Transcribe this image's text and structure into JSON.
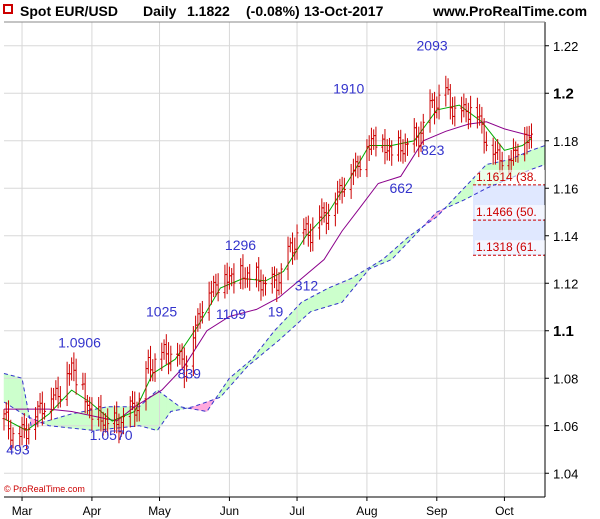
{
  "header": {
    "title": "Spot EUR/USD",
    "timeframe": "Daily",
    "last_price": "1.1822",
    "change": "(-0.08%)",
    "date": "13-Oct-2017",
    "site": "www.ProRealTime.com"
  },
  "footer": {
    "copyright": "© ProRealTime.com"
  },
  "colors": {
    "up": "#cc0000",
    "down": "#cc0000",
    "tenkan": "#00aa00",
    "kijun": "#8b008b",
    "cloud_bull": "#ccffcc",
    "cloud_bear": "#ffaadd",
    "span_line": "#3333cc",
    "fib": "#cc0000",
    "fib_zone": "#e0e8ff",
    "annotation": "#3333cc",
    "grid": "#d8d8d8"
  },
  "chart_data": {
    "type": "line",
    "title": "Spot EUR/USD Daily",
    "ylim": [
      1.03,
      1.23
    ],
    "grid": true,
    "x_labels": [
      {
        "label": "Mar",
        "day": 8
      },
      {
        "label": "Apr",
        "day": 39
      },
      {
        "label": "May",
        "day": 69
      },
      {
        "label": "Jun",
        "day": 100
      },
      {
        "label": "Jul",
        "day": 130
      },
      {
        "label": "Aug",
        "day": 161
      },
      {
        "label": "Sep",
        "day": 192
      },
      {
        "label": "Oct",
        "day": 222
      }
    ],
    "x_range": [
      0,
      240
    ],
    "y_ticks": [
      {
        "value": 1.04,
        "label": "1.04",
        "major": false
      },
      {
        "value": 1.06,
        "label": "1.06",
        "major": false
      },
      {
        "value": 1.08,
        "label": "1.08",
        "major": false
      },
      {
        "value": 1.1,
        "label": "1.1",
        "major": true
      },
      {
        "value": 1.12,
        "label": "1.12",
        "major": false
      },
      {
        "value": 1.14,
        "label": "1.14",
        "major": false
      },
      {
        "value": 1.16,
        "label": "1.16",
        "major": false
      },
      {
        "value": 1.18,
        "label": "1.18",
        "major": false
      },
      {
        "value": 1.2,
        "label": "1.2",
        "major": true
      },
      {
        "value": 1.22,
        "label": "1.22",
        "major": false
      }
    ],
    "price_path": [
      [
        0,
        1.063
      ],
      [
        6,
        1.054
      ],
      [
        12,
        1.062
      ],
      [
        18,
        1.07
      ],
      [
        24,
        1.074
      ],
      [
        30,
        1.085
      ],
      [
        34,
        1.078
      ],
      [
        38,
        1.066
      ],
      [
        45,
        1.062
      ],
      [
        50,
        1.06
      ],
      [
        56,
        1.066
      ],
      [
        60,
        1.07
      ],
      [
        64,
        1.085
      ],
      [
        70,
        1.09
      ],
      [
        76,
        1.092
      ],
      [
        80,
        1.085
      ],
      [
        84,
        1.098
      ],
      [
        88,
        1.112
      ],
      [
        94,
        1.12
      ],
      [
        100,
        1.123
      ],
      [
        106,
        1.124
      ],
      [
        112,
        1.122
      ],
      [
        118,
        1.118
      ],
      [
        122,
        1.122
      ],
      [
        126,
        1.132
      ],
      [
        130,
        1.14
      ],
      [
        136,
        1.142
      ],
      [
        140,
        1.148
      ],
      [
        146,
        1.152
      ],
      [
        150,
        1.162
      ],
      [
        155,
        1.168
      ],
      [
        160,
        1.175
      ],
      [
        164,
        1.182
      ],
      [
        168,
        1.178
      ],
      [
        172,
        1.176
      ],
      [
        178,
        1.178
      ],
      [
        184,
        1.182
      ],
      [
        190,
        1.195
      ],
      [
        196,
        1.2
      ],
      [
        200,
        1.193
      ],
      [
        204,
        1.192
      ],
      [
        208,
        1.196
      ],
      [
        212,
        1.186
      ],
      [
        216,
        1.176
      ],
      [
        220,
        1.174
      ],
      [
        224,
        1.172
      ],
      [
        228,
        1.178
      ],
      [
        232,
        1.182
      ],
      [
        234,
        1.182
      ]
    ],
    "tenkan": [
      [
        0,
        1.063
      ],
      [
        10,
        1.058
      ],
      [
        20,
        1.065
      ],
      [
        30,
        1.075
      ],
      [
        38,
        1.07
      ],
      [
        48,
        1.062
      ],
      [
        58,
        1.066
      ],
      [
        66,
        1.082
      ],
      [
        76,
        1.088
      ],
      [
        86,
        1.102
      ],
      [
        96,
        1.118
      ],
      [
        106,
        1.122
      ],
      [
        116,
        1.121
      ],
      [
        124,
        1.125
      ],
      [
        134,
        1.14
      ],
      [
        144,
        1.15
      ],
      [
        154,
        1.165
      ],
      [
        162,
        1.178
      ],
      [
        172,
        1.178
      ],
      [
        182,
        1.18
      ],
      [
        192,
        1.193
      ],
      [
        202,
        1.195
      ],
      [
        212,
        1.188
      ],
      [
        222,
        1.176
      ],
      [
        230,
        1.178
      ],
      [
        234,
        1.181
      ]
    ],
    "kijun": [
      [
        0,
        1.067
      ],
      [
        20,
        1.067
      ],
      [
        30,
        1.066
      ],
      [
        50,
        1.062
      ],
      [
        58,
        1.068
      ],
      [
        70,
        1.075
      ],
      [
        80,
        1.085
      ],
      [
        90,
        1.1
      ],
      [
        100,
        1.106
      ],
      [
        112,
        1.109
      ],
      [
        122,
        1.114
      ],
      [
        132,
        1.122
      ],
      [
        142,
        1.13
      ],
      [
        150,
        1.142
      ],
      [
        158,
        1.152
      ],
      [
        166,
        1.162
      ],
      [
        176,
        1.165
      ],
      [
        186,
        1.18
      ],
      [
        196,
        1.184
      ],
      [
        206,
        1.187
      ],
      [
        214,
        1.188
      ],
      [
        222,
        1.185
      ],
      [
        234,
        1.182
      ]
    ],
    "span_a": [
      [
        0,
        1.082
      ],
      [
        8,
        1.08
      ],
      [
        12,
        1.06
      ],
      [
        30,
        1.065
      ],
      [
        46,
        1.068
      ],
      [
        60,
        1.068
      ],
      [
        68,
        1.075
      ],
      [
        78,
        1.068
      ],
      [
        90,
        1.066
      ],
      [
        100,
        1.08
      ],
      [
        110,
        1.088
      ],
      [
        120,
        1.1
      ],
      [
        132,
        1.112
      ],
      [
        144,
        1.118
      ],
      [
        154,
        1.122
      ],
      [
        168,
        1.13
      ],
      [
        180,
        1.14
      ],
      [
        192,
        1.148
      ],
      [
        204,
        1.16
      ],
      [
        214,
        1.17
      ],
      [
        224,
        1.172
      ],
      [
        234,
        1.176
      ],
      [
        240,
        1.178
      ]
    ],
    "span_b": [
      [
        0,
        1.07
      ],
      [
        10,
        1.064
      ],
      [
        20,
        1.06
      ],
      [
        40,
        1.058
      ],
      [
        60,
        1.06
      ],
      [
        68,
        1.058
      ],
      [
        74,
        1.066
      ],
      [
        84,
        1.068
      ],
      [
        96,
        1.072
      ],
      [
        108,
        1.085
      ],
      [
        122,
        1.096
      ],
      [
        136,
        1.108
      ],
      [
        150,
        1.112
      ],
      [
        162,
        1.126
      ],
      [
        172,
        1.13
      ],
      [
        182,
        1.14
      ],
      [
        192,
        1.15
      ],
      [
        204,
        1.155
      ],
      [
        214,
        1.16
      ],
      [
        224,
        1.164
      ],
      [
        234,
        1.168
      ],
      [
        240,
        1.17
      ]
    ],
    "annotations": [
      {
        "text": "493",
        "x": 1,
        "y": 1.048
      },
      {
        "text": "1.0906",
        "x": 24,
        "y": 1.093
      },
      {
        "text": "1.0570",
        "x": 38,
        "y": 1.054
      },
      {
        "text": "1025",
        "x": 63,
        "y": 1.106
      },
      {
        "text": "839",
        "x": 77,
        "y": 1.08
      },
      {
        "text": "1296",
        "x": 98,
        "y": 1.134
      },
      {
        "text": "1109",
        "x": 94,
        "y": 1.105
      },
      {
        "text": "19",
        "x": 117,
        "y": 1.106
      },
      {
        "text": "312",
        "x": 129,
        "y": 1.117
      },
      {
        "text": "1910",
        "x": 146,
        "y": 1.2
      },
      {
        "text": "662",
        "x": 171,
        "y": 1.158
      },
      {
        "text": "823",
        "x": 185,
        "y": 1.174
      },
      {
        "text": "2093",
        "x": 183,
        "y": 1.218
      }
    ],
    "fib_levels": [
      {
        "value": 1.1614,
        "label": "1.1614 (38."
      },
      {
        "value": 1.1466,
        "label": "1.1466 (50."
      },
      {
        "value": 1.1318,
        "label": "1.1318 (61."
      }
    ]
  }
}
